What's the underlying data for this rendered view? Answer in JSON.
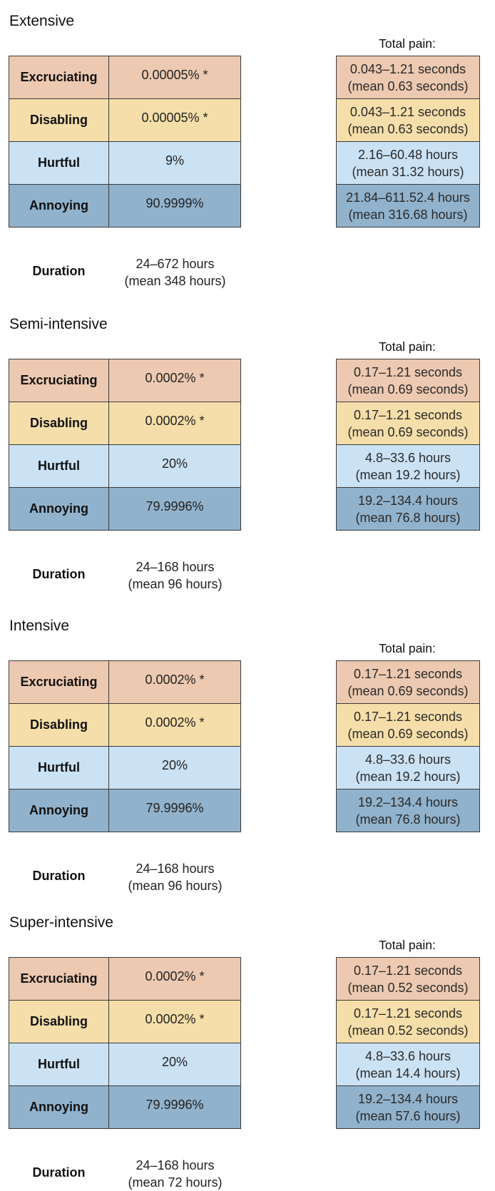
{
  "labels": {
    "total_pain": "Total pain:",
    "duration": "Duration"
  },
  "sections": [
    {
      "title": "Extensive",
      "rows": [
        {
          "category": "Excruciating",
          "value": "0.00005% *",
          "total": "0.043–1.21 seconds\n(mean 0.63 seconds)"
        },
        {
          "category": "Disabling",
          "value": "0.00005% *",
          "total": "0.043–1.21 seconds\n(mean 0.63 seconds)"
        },
        {
          "category": "Hurtful",
          "value": "9%",
          "total": "2.16–60.48 hours\n(mean 31.32 hours)"
        },
        {
          "category": "Annoying",
          "value": "90.9999%",
          "total": "21.84–611.52.4 hours\n(mean 316.68 hours)"
        }
      ],
      "duration": "24–672 hours\n(mean 348 hours)"
    },
    {
      "title": "Semi-intensive",
      "rows": [
        {
          "category": "Excruciating",
          "value": "0.0002% *",
          "total": "0.17–1.21 seconds\n(mean 0.69 seconds)"
        },
        {
          "category": "Disabling",
          "value": "0.0002% *",
          "total": "0.17–1.21 seconds\n(mean 0.69 seconds)"
        },
        {
          "category": "Hurtful",
          "value": "20%",
          "total": "4.8–33.6 hours\n(mean 19.2 hours)"
        },
        {
          "category": "Annoying",
          "value": "79.9996%",
          "total": "19.2–134.4 hours\n(mean 76.8 hours)"
        }
      ],
      "duration": "24–168 hours\n(mean 96 hours)"
    },
    {
      "title": "Intensive",
      "rows": [
        {
          "category": "Excruciating",
          "value": "0.0002% *",
          "total": "0.17–1.21 seconds\n(mean 0.69 seconds)"
        },
        {
          "category": "Disabling",
          "value": "0.0002% *",
          "total": "0.17–1.21 seconds\n(mean 0.69 seconds)"
        },
        {
          "category": "Hurtful",
          "value": "20%",
          "total": "4.8–33.6 hours\n(mean 19.2 hours)"
        },
        {
          "category": "Annoying",
          "value": "79.9996%",
          "total": "19.2–134.4 hours\n(mean 76.8 hours)"
        }
      ],
      "duration": "24–168 hours\n(mean 96 hours)"
    },
    {
      "title": "Super-intensive",
      "rows": [
        {
          "category": "Excruciating",
          "value": "0.0002% *",
          "total": "0.17–1.21 seconds\n(mean 0.52 seconds)"
        },
        {
          "category": "Disabling",
          "value": "0.0002% *",
          "total": "0.17–1.21 seconds\n(mean 0.52 seconds)"
        },
        {
          "category": "Hurtful",
          "value": "20%",
          "total": "4.8–33.6 hours\n(mean 14.4 hours)"
        },
        {
          "category": "Annoying",
          "value": "79.9996%",
          "total": "19.2–134.4 hours\n(mean 57.6 hours)"
        }
      ],
      "duration": "24–168 hours\n(mean 72 hours)"
    }
  ],
  "colors": {
    "excruciating": "#ecc9b0",
    "disabling": "#f5dea9",
    "hurtful": "#cbe2f4",
    "annoying": "#91b2cc"
  }
}
